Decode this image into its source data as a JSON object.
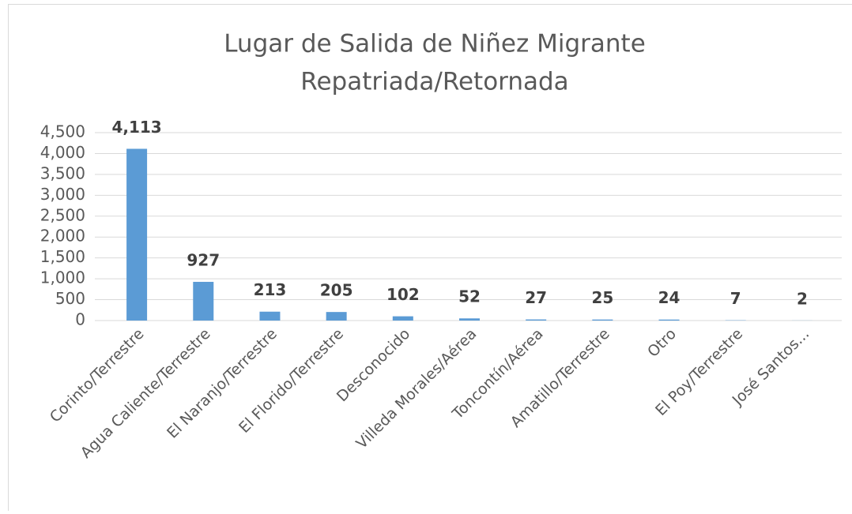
{
  "chart_data": {
    "type": "bar",
    "title": [
      "Lugar de Salida de Niñez Migrante",
      "Repatriada/Retornada"
    ],
    "categories": [
      "Corinto/Terrestre",
      "Agua Caliente/Terrestre",
      "El Naranjo/Terrestre",
      "El Florido/Terrestre",
      "Desconocido",
      "Villeda Morales/Aérea",
      "Toncontín/Aérea",
      "Amatillo/Terrestre",
      "Otro",
      "El Poy/Terrestre",
      "José Santos..."
    ],
    "values": [
      4113,
      927,
      213,
      205,
      102,
      52,
      27,
      25,
      24,
      7,
      2
    ],
    "value_labels": [
      "4,113",
      "927",
      "213",
      "205",
      "102",
      "52",
      "27",
      "25",
      "24",
      "7",
      "2"
    ],
    "color": "#5b9bd5",
    "ylim": [
      0,
      4500
    ],
    "yticks": [
      0,
      500,
      {
        "value": 1000,
        "label": "1,000"
      },
      {
        "value": 1500,
        "label": "1,500"
      },
      {
        "value": 2000,
        "label": "2,000"
      },
      {
        "value": 2500,
        "label": "2,500"
      },
      {
        "value": 3000,
        "label": "3,000"
      },
      {
        "value": 3500,
        "label": "3,500"
      },
      {
        "value": 4000,
        "label": "4,000"
      },
      {
        "value": 4500,
        "label": "4,500"
      }
    ],
    "grid": true
  }
}
